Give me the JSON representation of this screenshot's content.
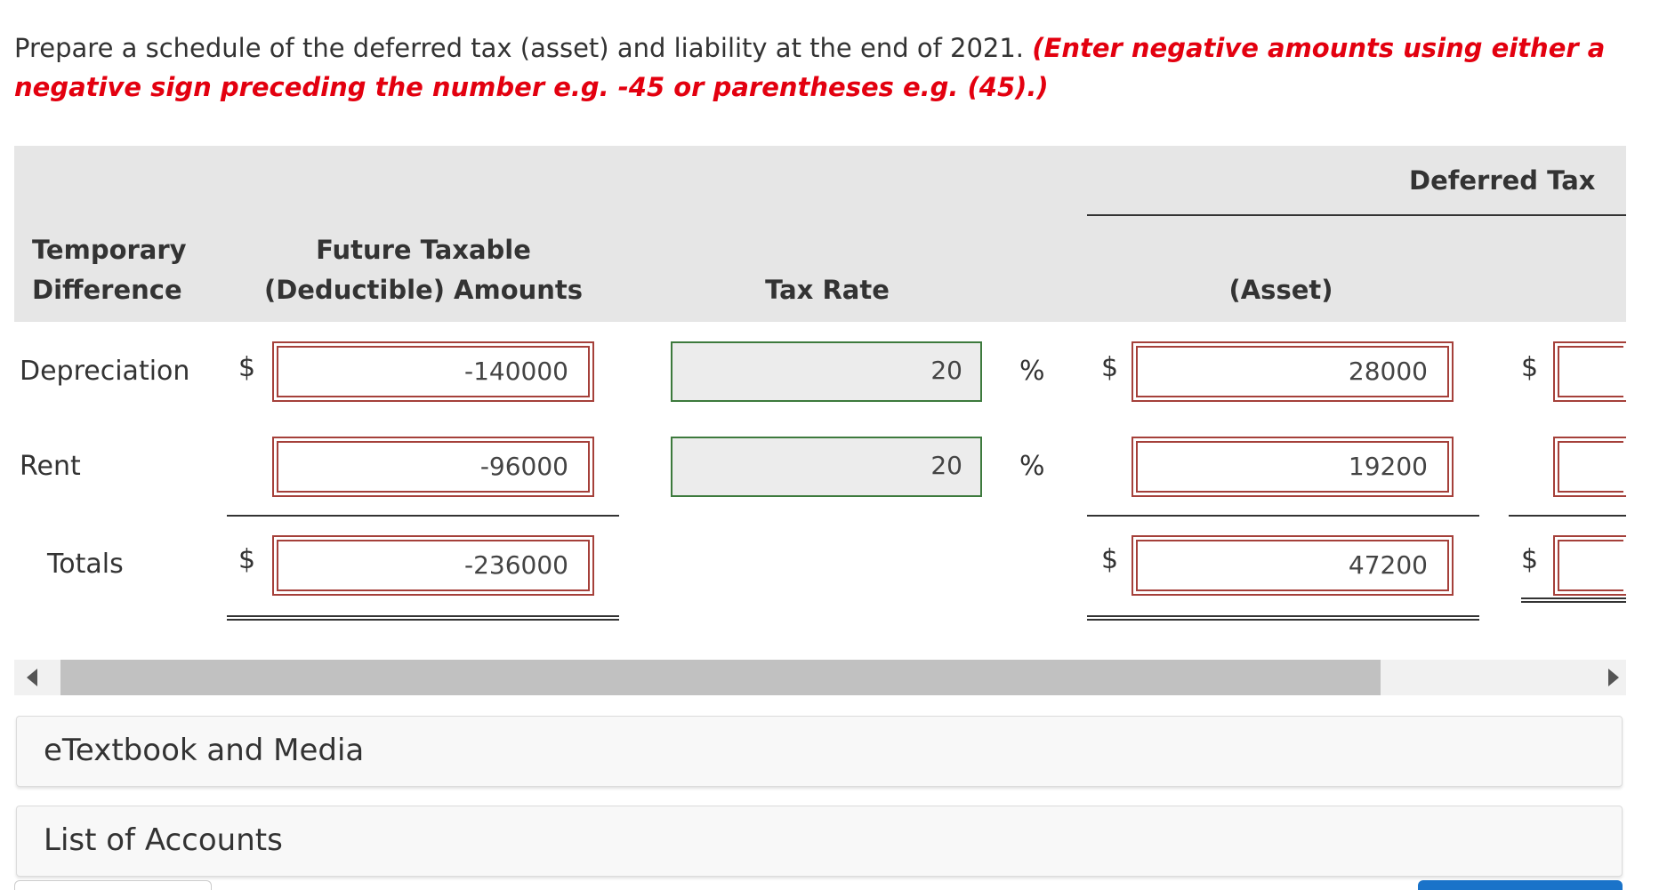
{
  "instructions": {
    "text": "Prepare a schedule of the deferred tax (asset) and liability at the end of 2021. ",
    "note": "(Enter negative amounts using either a negative sign preceding the number e.g. -45 or parentheses e.g. (45).)"
  },
  "table": {
    "headers": {
      "temporary_difference_line1": "Temporary",
      "temporary_difference_line2": "Difference",
      "future_taxable_line1": "Future Taxable",
      "future_taxable_line2": "(Deductible) Amounts",
      "tax_rate": "Tax Rate",
      "deferred_tax": "Deferred Tax",
      "asset": "(Asset)"
    },
    "rows": [
      {
        "label": "Depreciation",
        "currency": "$",
        "amount": "-140000",
        "rate": "20",
        "percent": "%",
        "asset_currency": "$",
        "asset": "28000",
        "liability_currency": "$",
        "liability": ""
      },
      {
        "label": "Rent",
        "currency": "",
        "amount": "-96000",
        "rate": "20",
        "percent": "%",
        "asset_currency": "",
        "asset": "19200",
        "liability_currency": "",
        "liability": ""
      }
    ],
    "totals": {
      "label": "Totals",
      "currency": "$",
      "amount": "-236000",
      "asset_currency": "$",
      "asset": "47200",
      "liability_currency": "$",
      "liability": ""
    }
  },
  "panels": {
    "etextbook": "eTextbook and Media",
    "accounts": "List of Accounts"
  },
  "colors": {
    "instruction_note": "#e3000f",
    "input_border": "#a5403a",
    "rate_border": "#3d7a3d",
    "header_bg": "#e6e6e6"
  }
}
